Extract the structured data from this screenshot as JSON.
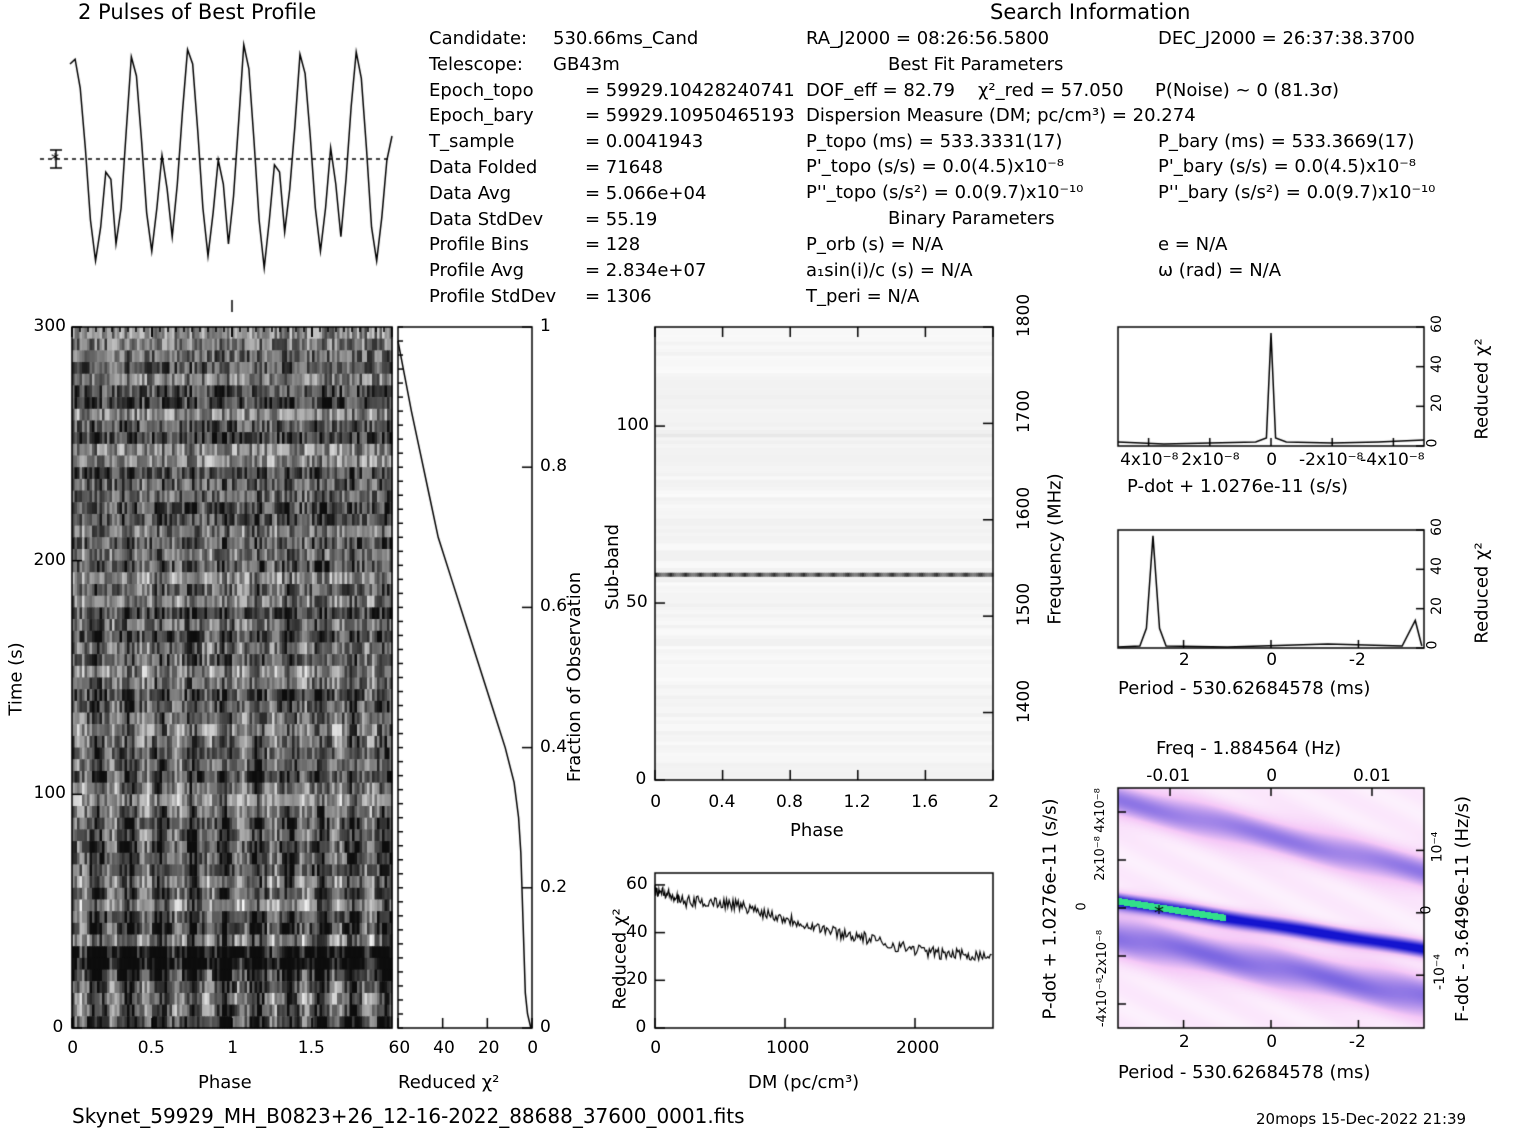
{
  "header": {
    "profile_title": "2 Pulses of Best Profile",
    "search_title": "Search Information",
    "best_fit_title": "Best Fit Parameters",
    "binary_title": "Binary Parameters"
  },
  "candidate_info": [
    {
      "label": "Candidate:",
      "value": "530.66ms_Cand"
    },
    {
      "label": "Telescope:",
      "value": "GB43m"
    },
    {
      "label": "Epoch_topo",
      "value": "= 59929.10428240741"
    },
    {
      "label": "Epoch_bary",
      "value": "= 59929.10950465193"
    },
    {
      "label": "T_sample",
      "value": "= 0.0041943"
    },
    {
      "label": "Data Folded",
      "value": "= 71648"
    },
    {
      "label": "Data Avg",
      "value": "= 5.066e+04"
    },
    {
      "label": "Data StdDev",
      "value": "= 55.19"
    },
    {
      "label": "Profile Bins",
      "value": "= 128"
    },
    {
      "label": "Profile Avg",
      "value": "= 2.834e+07"
    },
    {
      "label": "Profile StdDev",
      "value": "= 1306"
    }
  ],
  "search_info": {
    "ra": "RA_J2000 = 08:26:56.5800",
    "dec": "DEC_J2000 = 26:37:38.3700",
    "dof": "DOF_eff = 82.79",
    "chi2": "χ²_red = 57.050",
    "pnoise": "P(Noise) ~ 0  (81.3σ)",
    "dm": "Dispersion Measure (DM; pc/cm³) = 20.274",
    "p_topo": "P_topo (ms) = 533.3331(17)",
    "p_bary": "P_bary (ms) = 533.3669(17)",
    "pd_topo": "P'_topo (s/s) = 0.0(4.5)x10⁻⁸",
    "pd_bary": "P'_bary (s/s) = 0.0(4.5)x10⁻⁸",
    "pdd_topo": "P''_topo (s/s²) = 0.0(9.7)x10⁻¹⁰",
    "pdd_bary": "P''_bary (s/s²) = 0.0(9.7)x10⁻¹⁰",
    "porb": "P_orb (s) = N/A",
    "e": "e = N/A",
    "asini": "a₁sin(i)/c (s) = N/A",
    "omega": "ω (rad) = N/A",
    "tperi": "T_peri = N/A"
  },
  "footer": {
    "filename": "Skynet_59929_MH_B0823+26_12-16-2022_88688_37600_0001.fits",
    "stamp": "20mops 15-Dec-2022 21:39"
  },
  "colors": {
    "ink": "#000000",
    "cmap_low": "#ffffff",
    "cmap_mid": "#f3c9f5",
    "cmap_high": "#1212c8",
    "cmap_peak": "#32e08a"
  },
  "chart_data": [
    {
      "id": "profile",
      "type": "line",
      "title": "2 Pulses of Best Profile",
      "xlim": [
        0,
        2
      ],
      "x_note": "phase",
      "values": [
        0.9,
        0.92,
        0.8,
        0.55,
        0.25,
        0.08,
        0.22,
        0.45,
        0.42,
        0.15,
        0.3,
        0.62,
        0.93,
        0.85,
        0.58,
        0.28,
        0.12,
        0.3,
        0.52,
        0.38,
        0.18,
        0.4,
        0.7,
        0.96,
        0.9,
        0.62,
        0.3,
        0.1,
        0.28,
        0.5,
        0.4,
        0.15,
        0.35,
        0.66,
        0.98,
        0.88,
        0.58,
        0.25,
        0.05,
        0.25,
        0.48,
        0.45,
        0.2,
        0.38,
        0.64,
        0.94,
        0.86,
        0.6,
        0.3,
        0.12,
        0.3,
        0.55,
        0.4,
        0.18,
        0.42,
        0.72,
        0.95,
        0.84,
        0.55,
        0.22,
        0.08,
        0.26,
        0.5,
        0.6
      ]
    },
    {
      "id": "time_phase",
      "type": "heatmap",
      "xlabel": "Phase",
      "ylabel": "Time (s)",
      "xlim": [
        0,
        2
      ],
      "ylim": [
        0,
        300
      ],
      "xticks": [
        "0",
        "0.5",
        "1",
        "1.5"
      ],
      "yticks": [
        "0",
        "100",
        "200",
        "300"
      ]
    },
    {
      "id": "time_chi2",
      "type": "line",
      "xlabel": "Reduced χ²",
      "ylabel": "Fraction of Observation",
      "xlim": [
        60,
        0
      ],
      "ylim": [
        0,
        1
      ],
      "xticks": [
        "60",
        "40",
        "20",
        "0"
      ],
      "yticks": [
        "0",
        "0.2",
        "0.4",
        "0.6",
        "0.8",
        "1"
      ],
      "points": [
        [
          0.5,
          0
        ],
        [
          2,
          0.02
        ],
        [
          3,
          0.05
        ],
        [
          4,
          0.15
        ],
        [
          5,
          0.25
        ],
        [
          6,
          0.3
        ],
        [
          8,
          0.35
        ],
        [
          12,
          0.4
        ],
        [
          18,
          0.46
        ],
        [
          24,
          0.52
        ],
        [
          30,
          0.58
        ],
        [
          36,
          0.64
        ],
        [
          42,
          0.7
        ],
        [
          46,
          0.76
        ],
        [
          50,
          0.82
        ],
        [
          54,
          0.88
        ],
        [
          57,
          0.93
        ],
        [
          60,
          0.98
        ]
      ]
    },
    {
      "id": "subband_phase",
      "type": "heatmap",
      "xlabel": "Phase",
      "ylabel": "Sub-band",
      "ylabel_right": "Frequency (MHz)",
      "xlim": [
        0,
        2
      ],
      "ylim": [
        0,
        128
      ],
      "xticks": [
        "0",
        "0.4",
        "0.8",
        "1.2",
        "1.6",
        "2"
      ],
      "yticks": [
        "0",
        "50",
        "100"
      ],
      "yticks_right": [
        "1400",
        "1500",
        "1600",
        "1700",
        "1800"
      ]
    },
    {
      "id": "dm_chi2",
      "type": "line",
      "xlabel": "DM (pc/cm³)",
      "ylabel": "Reduced χ²",
      "xlim": [
        0,
        2600
      ],
      "ylim": [
        0,
        65
      ],
      "xticks": [
        "0",
        "1000",
        "2000"
      ],
      "yticks": [
        "0",
        "20",
        "40",
        "60"
      ],
      "points": [
        [
          0,
          58
        ],
        [
          100,
          56
        ],
        [
          200,
          53
        ],
        [
          400,
          53
        ],
        [
          600,
          52
        ],
        [
          800,
          49
        ],
        [
          1000,
          46
        ],
        [
          1200,
          43
        ],
        [
          1400,
          40
        ],
        [
          1600,
          38
        ],
        [
          1800,
          35
        ],
        [
          2000,
          33
        ],
        [
          2200,
          31
        ],
        [
          2400,
          31
        ],
        [
          2600,
          30
        ]
      ]
    },
    {
      "id": "pdot_chi2",
      "type": "line",
      "xlabel": "P-dot + 1.0276e-11 (s/s)",
      "ylabel": "Reduced χ²",
      "ylim": [
        0,
        60
      ],
      "xticks": [
        "4x10⁻⁸",
        "2x10⁻⁸",
        "0",
        "-2x10⁻⁸",
        "-4x10⁻⁸"
      ],
      "yticks": [
        "0",
        "20",
        "40",
        "60"
      ],
      "points": [
        [
          -0.5,
          2
        ],
        [
          -0.35,
          1
        ],
        [
          -0.2,
          1.5
        ],
        [
          -0.05,
          2
        ],
        [
          -0.015,
          4
        ],
        [
          0,
          57
        ],
        [
          0.015,
          4
        ],
        [
          0.05,
          2
        ],
        [
          0.2,
          1.5
        ],
        [
          0.35,
          2
        ],
        [
          0.5,
          3
        ]
      ]
    },
    {
      "id": "period_chi2",
      "type": "line",
      "xlabel": "Period - 530.62684578 (ms)",
      "ylabel": "Reduced χ²",
      "ylim": [
        0,
        60
      ],
      "xticks": [
        "2",
        "0",
        "-2"
      ],
      "yticks": [
        "0",
        "20",
        "40",
        "60"
      ],
      "points": [
        [
          3.5,
          0.5
        ],
        [
          3.0,
          1
        ],
        [
          2.85,
          10
        ],
        [
          2.7,
          57
        ],
        [
          2.55,
          10
        ],
        [
          2.4,
          1
        ],
        [
          1.0,
          0.5
        ],
        [
          -1.3,
          2
        ],
        [
          -3.0,
          1
        ],
        [
          -3.3,
          14
        ],
        [
          -3.45,
          1
        ]
      ]
    },
    {
      "id": "ppdot_grid",
      "type": "heatmap",
      "xlabel": "Period - 530.62684578 (ms)",
      "xlabel_top": "Freq - 1.884564 (Hz)",
      "ylabel": "P-dot + 1.0276e-11 (s/s)",
      "ylabel_right": "F-dot - 3.6496e-11 (Hz/s)",
      "xticks": [
        "2",
        "0",
        "-2"
      ],
      "xticks_top": [
        "-0.01",
        "0",
        "0.01"
      ],
      "yticks": [
        "4x10⁻⁸",
        "2x10⁻⁸",
        "0",
        "-2x10⁻⁸",
        "-4x10⁻⁸"
      ],
      "yticks_right": [
        "-10⁻⁴",
        "0",
        "10⁻⁴"
      ]
    }
  ]
}
